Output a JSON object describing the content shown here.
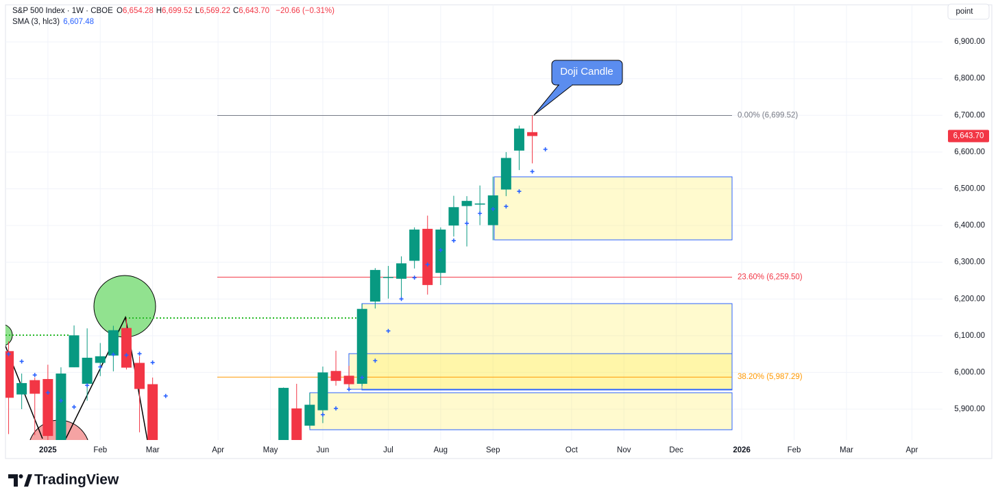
{
  "chart_data": {
    "type": "candlestick",
    "symbol": "S&P 500 Index · 1W · CBOE",
    "ohlc_legend": [
      {
        "key": "O",
        "value": "6,654.28"
      },
      {
        "key": "H",
        "value": "6,699.52"
      },
      {
        "key": "L",
        "value": "6,569.22"
      },
      {
        "key": "C",
        "value": "6,643.70"
      }
    ],
    "change": "−20.66 (−0.31%)",
    "sma_legend": {
      "name": "SMA (3, hlc3)",
      "value": "6,607.48"
    },
    "scale_button": "point",
    "annotation": "Doji Candle",
    "brand": "TradingView",
    "categories": [
      null,
      null,
      null,
      "2025",
      null,
      null,
      null,
      "Feb",
      null,
      null,
      null,
      "Mar",
      null,
      null,
      null,
      null,
      "Apr",
      null,
      null,
      null,
      "May",
      null,
      null,
      null,
      "Jun",
      null,
      null,
      null,
      null,
      "Jul",
      null,
      null,
      null,
      "Aug",
      null,
      null,
      null,
      "Sep",
      null,
      null,
      null,
      null,
      null,
      "Oct",
      null,
      null,
      null,
      "Nov",
      null,
      null,
      null,
      "Dec",
      null,
      null,
      null,
      null,
      "2026",
      null,
      null,
      null,
      "Feb",
      null,
      null,
      null,
      "Mar",
      null,
      null,
      null,
      null,
      "Apr",
      null,
      null,
      null
    ],
    "candles": {
      "up_color": "#089981",
      "down_color": "#f23645",
      "open": [
        6058,
        5940,
        5979,
        5982,
        5806,
        6014,
        5969,
        6026,
        6046,
        6121,
        6026,
        5968,
        null,
        null,
        null,
        null,
        null,
        null,
        null,
        null,
        null,
        5807,
        5902,
        5855,
        5897,
        6004,
        5991,
        5969,
        6193,
        6259,
        6255,
        6304,
        6391,
        6271,
        6400,
        6453,
        6457,
        6401,
        6498,
        6604,
        6654.28,
        null,
        null,
        null,
        null,
        null,
        null,
        null,
        null,
        null,
        null,
        null,
        null,
        null,
        null,
        null,
        null,
        null,
        null,
        null,
        null,
        null,
        null,
        null,
        null,
        null,
        null,
        null,
        null,
        null,
        null,
        null
      ],
      "high": [
        6085,
        5997,
        5986,
        6021,
        6014,
        6128,
        6120,
        6080,
        6127,
        6147,
        6044,
        5986,
        null,
        null,
        null,
        null,
        null,
        null,
        null,
        null,
        null,
        5959,
        5969,
        5944,
        6016,
        6059,
        6018,
        6187,
        6284,
        6290,
        6316,
        6395,
        6427,
        6395,
        6481,
        6480,
        6509,
        6533,
        6600,
        6672,
        6699.52,
        null,
        null,
        null,
        null,
        null,
        null,
        null,
        null,
        null,
        null,
        null,
        null,
        null,
        null,
        null,
        null,
        null,
        null,
        null,
        null,
        null,
        null,
        null,
        null,
        null,
        null,
        null,
        null,
        null,
        null,
        null
      ],
      "low": [
        5832,
        5900,
        5829,
        5809,
        5773,
        6014,
        5923,
        5990,
        6003,
        6008,
        5837,
        5666,
        null,
        null,
        null,
        null,
        null,
        null,
        null,
        null,
        null,
        5786,
        5767,
        5848,
        5862,
        5964,
        5952,
        5963,
        6174,
        6201,
        6201,
        6283,
        6212,
        6238,
        6370,
        6343,
        6401,
        6360,
        6480,
        6551,
        6569.22,
        null,
        null,
        null,
        null,
        null,
        null,
        null,
        null,
        null,
        null,
        null,
        null,
        null,
        null,
        null,
        null,
        null,
        null,
        null,
        null,
        null,
        null,
        null,
        null,
        null,
        null,
        null,
        null,
        null,
        null,
        null
      ],
      "close": [
        5931,
        5971,
        5942,
        5827,
        5997,
        6101,
        6040,
        6044,
        6115,
        6013,
        5955,
        5770,
        null,
        null,
        null,
        null,
        null,
        null,
        null,
        null,
        null,
        5958,
        5803,
        5912,
        6000,
        5977,
        5968,
        6173,
        6279,
        6260,
        6297,
        6389,
        6238,
        6389,
        6450,
        6467,
        6460,
        6482,
        6584,
        6664,
        6643.7,
        null,
        null,
        null,
        null,
        null,
        null,
        null,
        null,
        null,
        null,
        null,
        null,
        null,
        null,
        null,
        null,
        null,
        null,
        null,
        null,
        null,
        null,
        null,
        null,
        null,
        null,
        null,
        null,
        null,
        null,
        null
      ]
    },
    "sma": {
      "color": "#2962ff",
      "values": [
        6050,
        6030,
        5993,
        5945,
        5923,
        5906,
        5965,
        6015,
        6049,
        6047,
        6051,
        6027,
        5936,
        null,
        null,
        null,
        null,
        null,
        null,
        null,
        null,
        null,
        null,
        null,
        5885,
        5902,
        5954,
        5986,
        6032,
        6113,
        6200,
        6258,
        6294,
        6333,
        6359,
        6406,
        6433,
        6445,
        6452,
        6493,
        6547,
        6607.48,
        null,
        null,
        null,
        null,
        null,
        null,
        null,
        null,
        null,
        null,
        null,
        null,
        null,
        null,
        null,
        null,
        null,
        null,
        null,
        null,
        null,
        null,
        null,
        null,
        null,
        null,
        null,
        null,
        null,
        null
      ]
    },
    "fib_levels": [
      {
        "label": "0.00% (6,699.52)",
        "value": 6699.52,
        "color": "#787b86"
      },
      {
        "label": "23.60% (6,259.50)",
        "value": 6259.5,
        "color": "#f23645"
      },
      {
        "label": "38.20% (5,987.29)",
        "value": 5987.29,
        "color": "#ff9800"
      }
    ],
    "last_price": {
      "value": 6643.7,
      "label": "6,643.70",
      "color": "#f23645"
    },
    "ylim": [
      5816,
      7001
    ],
    "yticks": [
      {
        "value": 5900,
        "label": "5,900.00"
      },
      {
        "value": 6000,
        "label": "6,000.00"
      },
      {
        "value": 6100,
        "label": "6,100.00"
      },
      {
        "value": 6200,
        "label": "6,200.00"
      },
      {
        "value": 6300,
        "label": "6,300.00"
      },
      {
        "value": 6400,
        "label": "6,400.00"
      },
      {
        "value": 6500,
        "label": "6,500.00"
      },
      {
        "value": 6600,
        "label": "6,600.00"
      },
      {
        "value": 6700,
        "label": "6,700.00"
      },
      {
        "value": 6800,
        "label": "6,800.00"
      },
      {
        "value": 6900,
        "label": "6,900.00"
      }
    ],
    "grid": true
  }
}
